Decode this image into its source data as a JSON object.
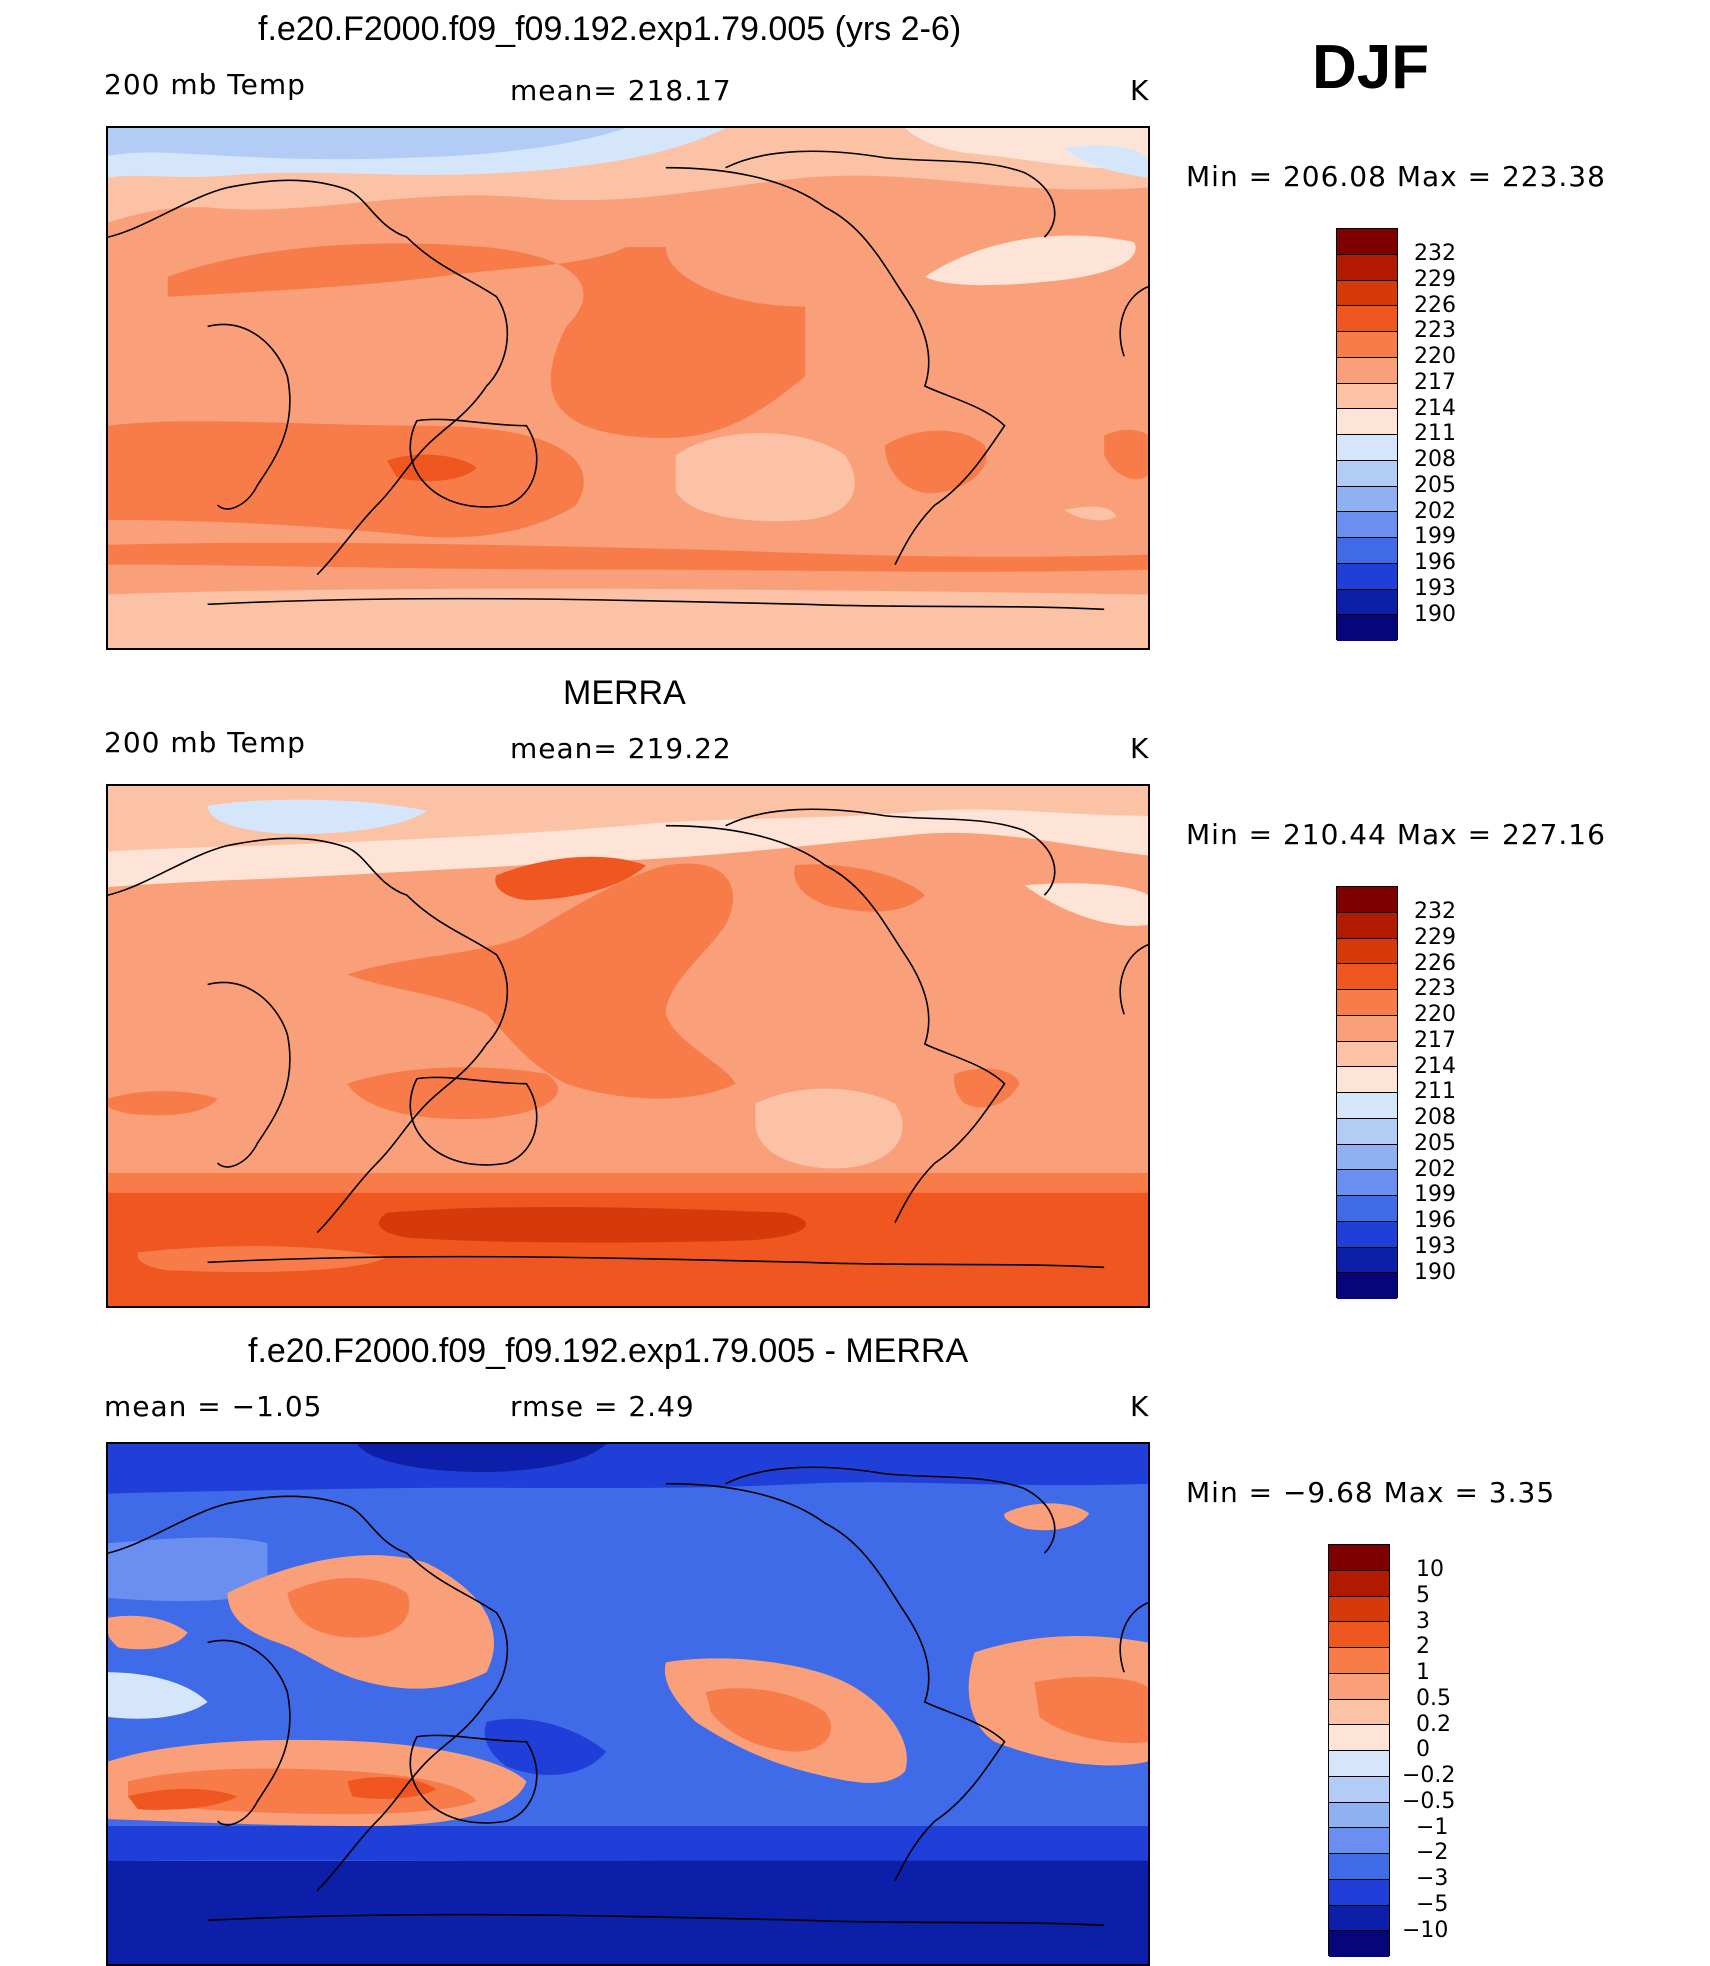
{
  "season": "DJF",
  "panels": [
    {
      "title": "f.e20.F2000.f09_f09.192.exp1.79.005 (yrs 2-6)",
      "left_label": "200 mb Temp",
      "center_label": "mean=  218.17",
      "unit": "K",
      "minmax": "Min  =  206.08  Max  =  223.38"
    },
    {
      "title": "MERRA",
      "left_label": "200 mb Temp",
      "center_label": "mean=  219.22",
      "unit": "K",
      "minmax": "Min  =  210.44  Max  =  227.16"
    },
    {
      "title": "f.e20.F2000.f09_f09.192.exp1.79.005 - MERRA",
      "left_label": "mean  =    −1.05",
      "center_label": "rmse  =     2.49",
      "unit": "K",
      "minmax": "Min  =    −9.68  Max  =      3.35"
    }
  ],
  "colorbar_abs": {
    "labels": [
      "232",
      "229",
      "226",
      "223",
      "220",
      "217",
      "214",
      "211",
      "208",
      "205",
      "202",
      "199",
      "196",
      "193",
      "190"
    ],
    "colors": [
      "#7f0000",
      "#b11a00",
      "#d63a0a",
      "#f0561f",
      "#f77c4a",
      "#f9a07a",
      "#fbc2a6",
      "#fde4d6",
      "#d6e6fa",
      "#b2ccf6",
      "#8fb0f1",
      "#6a8ff0",
      "#3f6ae8",
      "#1f3fd8",
      "#0d1fa8",
      "#06067a"
    ]
  },
  "colorbar_diff": {
    "labels": [
      "10",
      "5",
      "3",
      "2",
      "1",
      "0.5",
      "0.2",
      "0",
      "−0.2",
      "−0.5",
      "−1",
      "−2",
      "−3",
      "−5",
      "−10"
    ],
    "colors": [
      "#7f0000",
      "#b11a00",
      "#d63a0a",
      "#f0561f",
      "#f77c4a",
      "#f9a07a",
      "#fbc2a6",
      "#fde4d6",
      "#d6e6fa",
      "#b2ccf6",
      "#8fb0f1",
      "#6a8ff0",
      "#3f6ae8",
      "#1f3fd8",
      "#0d1fa8",
      "#06067a"
    ]
  }
}
